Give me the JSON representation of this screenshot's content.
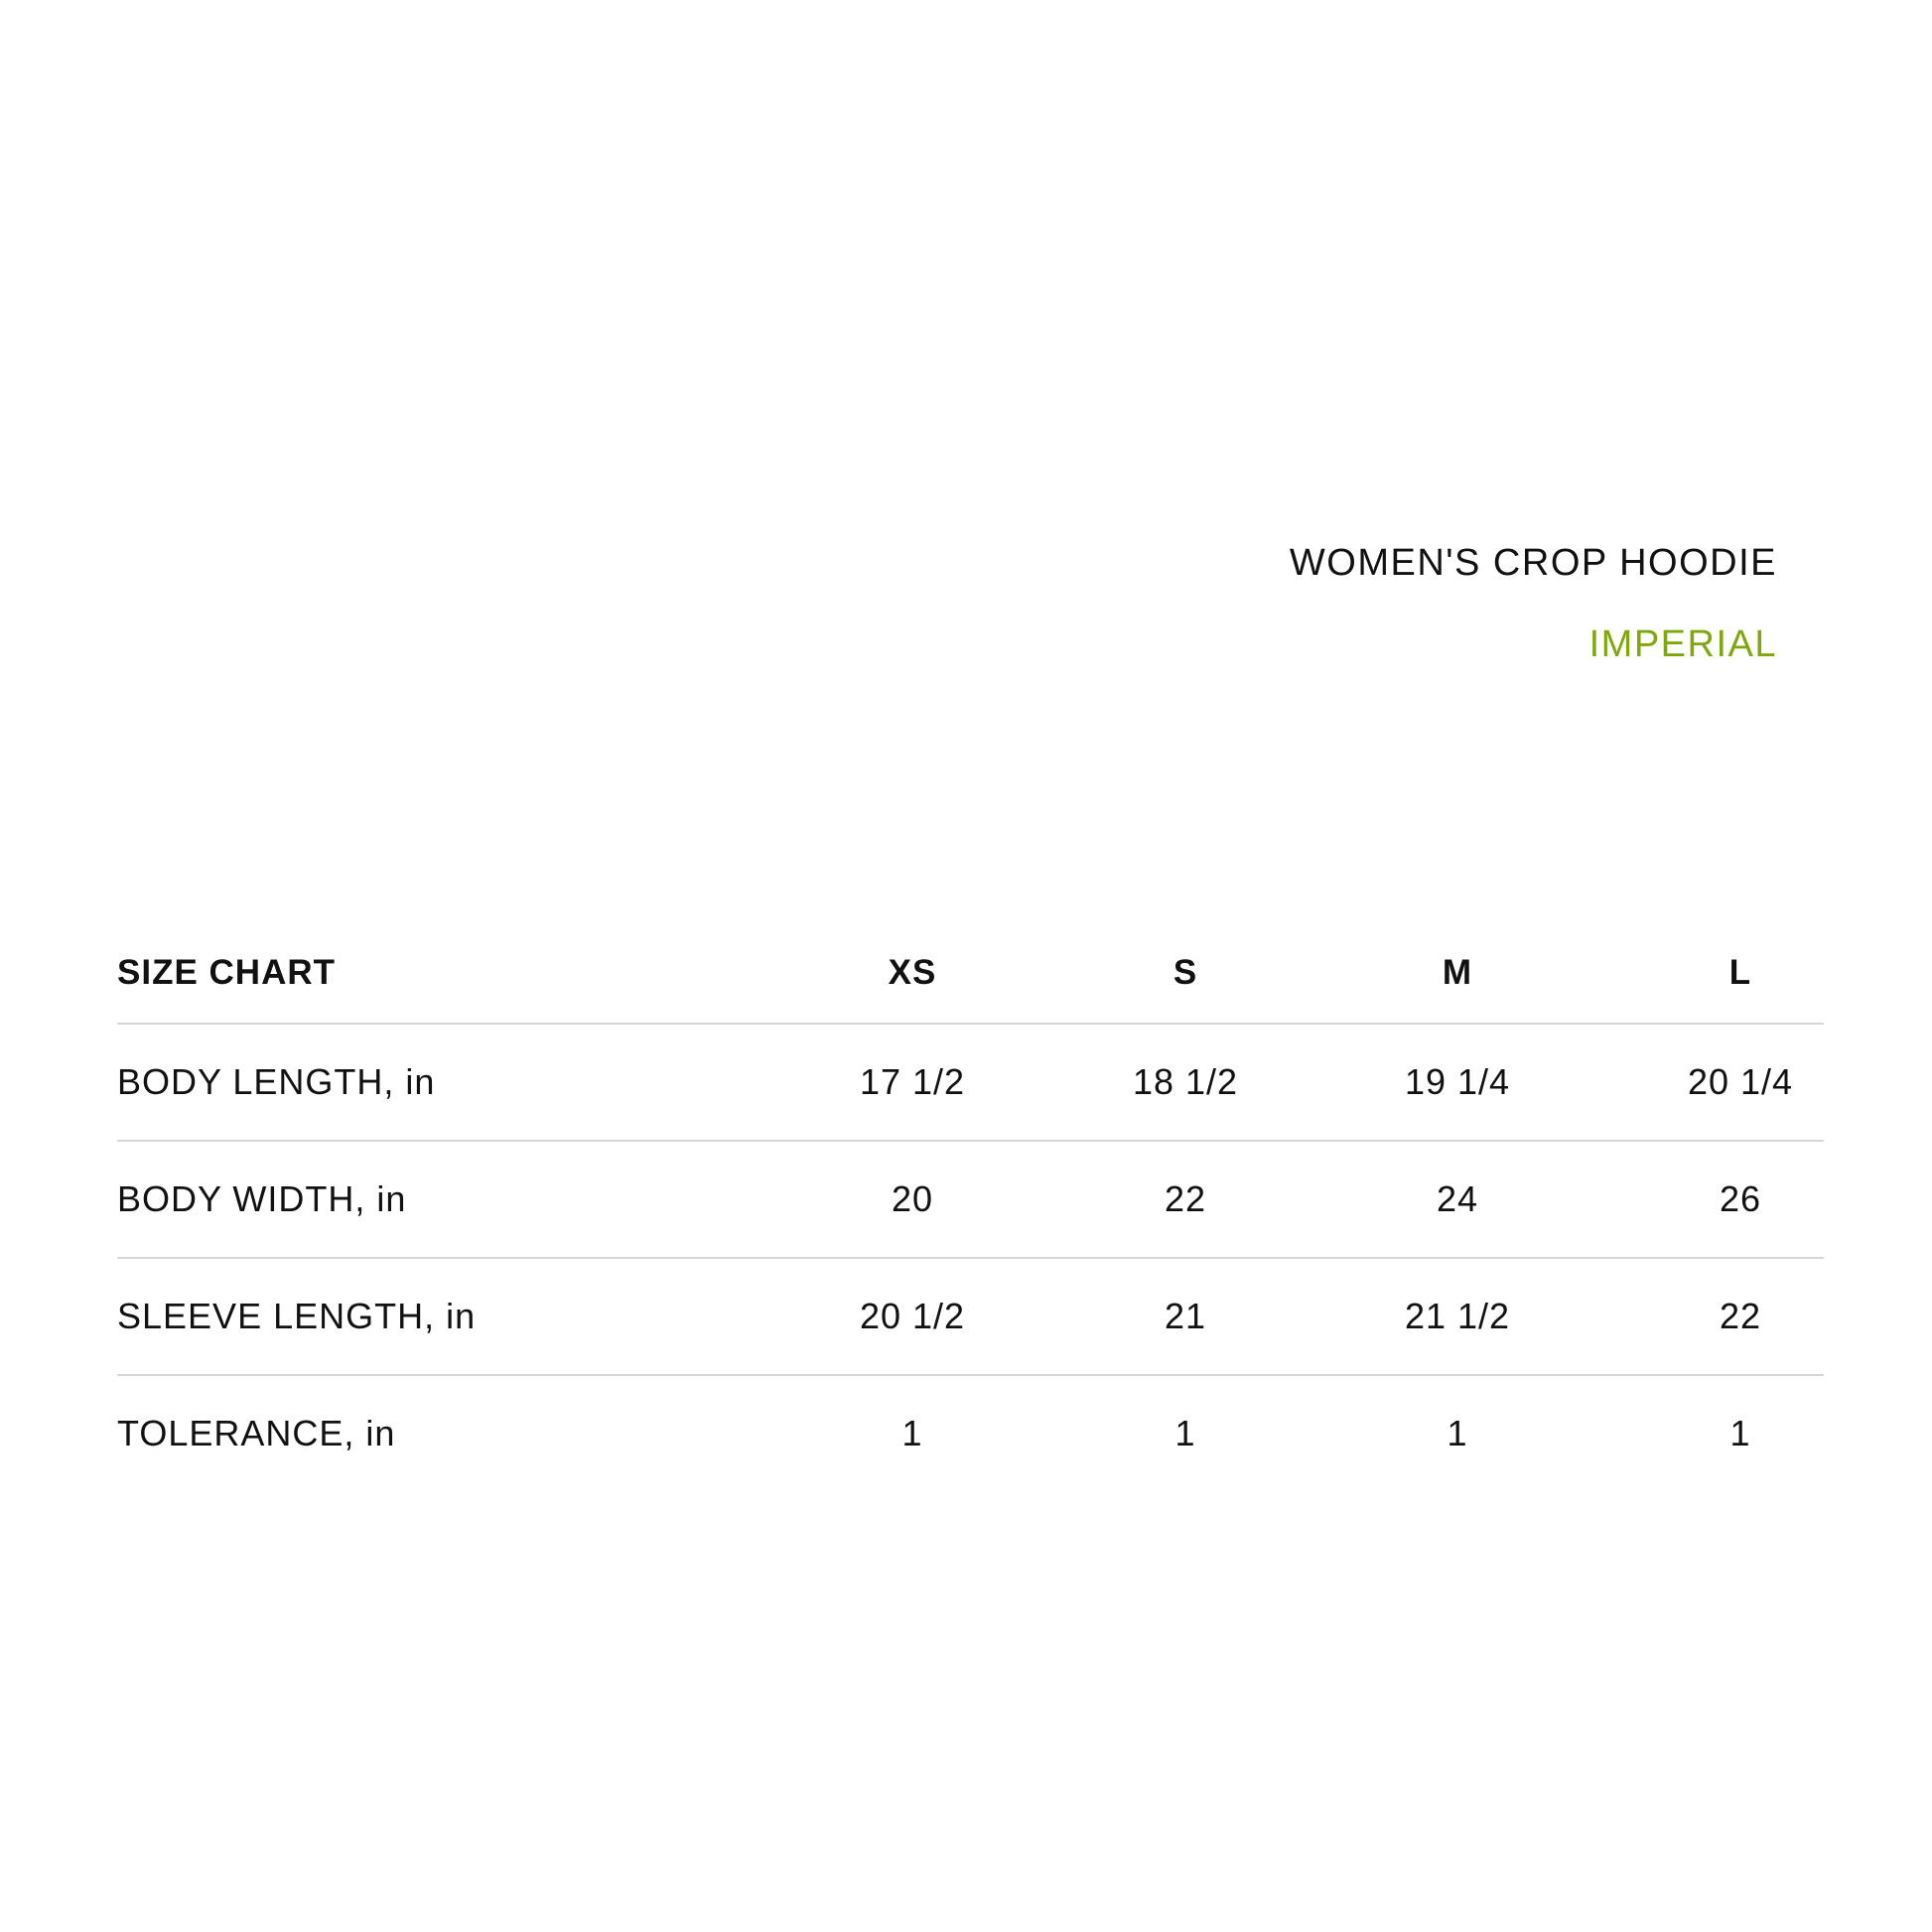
{
  "title": "WOMEN'S CROP HOODIE",
  "unit_system": "IMPERIAL",
  "colors": {
    "accent": "#7fa80e",
    "divider": "#d6d6d6",
    "text": "#111111"
  },
  "table": {
    "header": "SIZE CHART",
    "sizes": [
      "XS",
      "S",
      "M",
      "L"
    ],
    "rows": [
      {
        "label": "BODY LENGTH, in",
        "values": [
          "17 1/2",
          "18 1/2",
          "19 1/4",
          "20 1/4"
        ]
      },
      {
        "label": "BODY WIDTH, in",
        "values": [
          "20",
          "22",
          "24",
          "26"
        ]
      },
      {
        "label": "SLEEVE LENGTH, in",
        "values": [
          "20 1/2",
          "21",
          "21 1/2",
          "22"
        ]
      },
      {
        "label": "TOLERANCE, in",
        "values": [
          "1",
          "1",
          "1",
          "1"
        ]
      }
    ]
  }
}
